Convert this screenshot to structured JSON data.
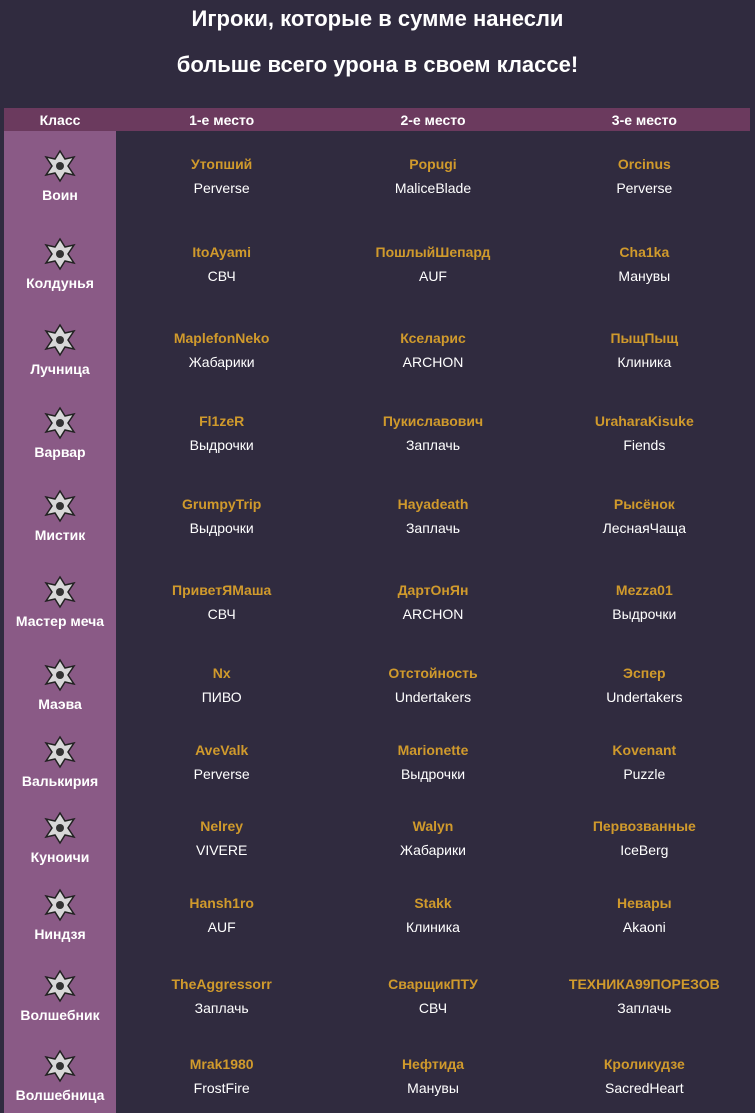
{
  "title_line1": "Игроки, которые в сумме нанесли",
  "title_line2": "больше всего урона в своем классе!",
  "colors": {
    "background": "#302b3f",
    "header": "#6b3a5e",
    "class_column": "#8a5a86",
    "nickname": "#d09a2c"
  },
  "headers": [
    "Класс",
    "1-е место",
    "2-е место",
    "3-е место"
  ],
  "rows": [
    {
      "class": "Воин",
      "icon": "warrior-icon",
      "places": [
        {
          "nick": "Утопший",
          "guild": "Perverse"
        },
        {
          "nick": "Popugi",
          "guild": "MaliceBlade"
        },
        {
          "nick": "Orcinus",
          "guild": "Perverse"
        }
      ]
    },
    {
      "class": "Колдунья",
      "icon": "sorceress-icon",
      "places": [
        {
          "nick": "ItoAyami",
          "guild": "СВЧ"
        },
        {
          "nick": "ПошлыйШепард",
          "guild": "AUF"
        },
        {
          "nick": "Cha1ka",
          "guild": "Манувы"
        }
      ]
    },
    {
      "class": "Лучница",
      "icon": "ranger-icon",
      "places": [
        {
          "nick": "MaplefonNeko",
          "guild": "Жабарики"
        },
        {
          "nick": "Кселарис",
          "guild": "ARCHON"
        },
        {
          "nick": "ПыщПыщ",
          "guild": "Клиника"
        }
      ]
    },
    {
      "class": "Варвар",
      "icon": "berserker-icon",
      "places": [
        {
          "nick": "Fl1zeR",
          "guild": "Выдрочки"
        },
        {
          "nick": "Пукиславович",
          "guild": "Заплачь"
        },
        {
          "nick": "UraharaKisuke",
          "guild": "Fiends"
        }
      ]
    },
    {
      "class": "Мистик",
      "icon": "tamer-icon",
      "places": [
        {
          "nick": "GrumpyTrip",
          "guild": "Выдрочки"
        },
        {
          "nick": "Hayadeath",
          "guild": "Заплачь"
        },
        {
          "nick": "Рысёнок",
          "guild": "ЛеснаяЧаща"
        }
      ]
    },
    {
      "class": "Мастер меча",
      "icon": "musa-icon",
      "places": [
        {
          "nick": "ПриветЯМаша",
          "guild": "СВЧ"
        },
        {
          "nick": "ДартОнЯн",
          "guild": "ARCHON"
        },
        {
          "nick": "Mezza01",
          "guild": "Выдрочки"
        }
      ]
    },
    {
      "class": "Маэва",
      "icon": "maehwa-icon",
      "places": [
        {
          "nick": "Nx",
          "guild": "ПИВО"
        },
        {
          "nick": "Отстойность",
          "guild": "Undertakers"
        },
        {
          "nick": "Эспер",
          "guild": "Undertakers"
        }
      ]
    },
    {
      "class": "Валькирия",
      "icon": "valkyrie-icon",
      "places": [
        {
          "nick": "AveValk",
          "guild": "Perverse"
        },
        {
          "nick": "Marionette",
          "guild": "Выдрочки"
        },
        {
          "nick": "Kovenant",
          "guild": "Puzzle"
        }
      ]
    },
    {
      "class": "Куноичи",
      "icon": "kunoichi-icon",
      "places": [
        {
          "nick": "Nelrey",
          "guild": "VIVERE"
        },
        {
          "nick": "Walyn",
          "guild": "Жабарики"
        },
        {
          "nick": "Первозванные",
          "guild": "IceBerg"
        }
      ]
    },
    {
      "class": "Ниндзя",
      "icon": "ninja-icon",
      "places": [
        {
          "nick": "Hansh1ro",
          "guild": "AUF"
        },
        {
          "nick": "Stakk",
          "guild": "Клиника"
        },
        {
          "nick": "Невары",
          "guild": "Akaoni"
        }
      ]
    },
    {
      "class": "Волшебник",
      "icon": "wizard-icon",
      "places": [
        {
          "nick": "TheAggressorr",
          "guild": "Заплачь"
        },
        {
          "nick": "СварщикПТУ",
          "guild": "СВЧ"
        },
        {
          "nick": "ТЕХНИКА99ПОРЕЗОВ",
          "guild": "Заплачь"
        }
      ]
    },
    {
      "class": "Волшебница",
      "icon": "witch-icon",
      "places": [
        {
          "nick": "Mrak1980",
          "guild": "FrostFire"
        },
        {
          "nick": "Нефтида",
          "guild": "Манувы"
        },
        {
          "nick": "Кроликудзе",
          "guild": "SacredHeart"
        }
      ]
    }
  ]
}
